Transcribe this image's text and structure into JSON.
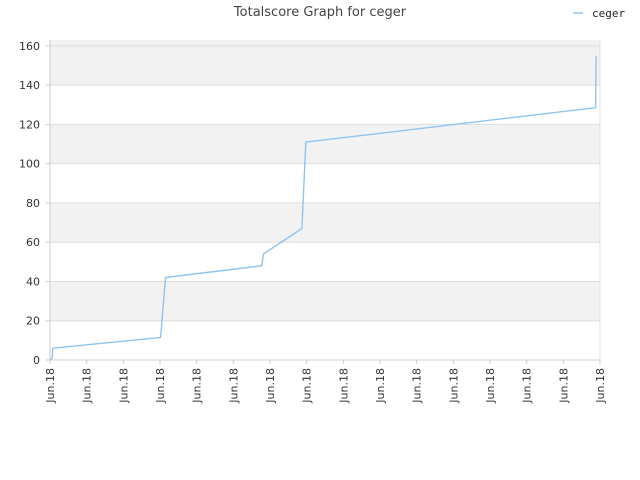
{
  "chart_data": {
    "type": "line",
    "title": "Totalscore Graph for ceger",
    "xlabel": "",
    "ylabel": "",
    "ylim": [
      0,
      163
    ],
    "yticks": [
      0,
      20,
      40,
      60,
      80,
      100,
      120,
      140,
      160
    ],
    "xtick_labels": [
      "Jun.18",
      "Jun.18",
      "Jun.18",
      "Jun.18",
      "Jun.18",
      "Jun.18",
      "Jun.18",
      "Jun.18",
      "Jun.18",
      "Jun.18",
      "Jun.18",
      "Jun.18",
      "Jun.18",
      "Jun.18",
      "Jun.18",
      "Jun.18"
    ],
    "grid": true,
    "legend_position": "top-right",
    "colors": {
      "line": "#90c4ee",
      "band": "#f2f2f2",
      "grid": "#dddddd",
      "axis": "#cccccc"
    },
    "series": [
      {
        "name": "ceger",
        "points": [
          [
            0.0,
            0
          ],
          [
            0.4,
            1
          ],
          [
            0.5,
            6
          ],
          [
            20.1,
            11.5
          ],
          [
            21.0,
            42
          ],
          [
            38.5,
            48
          ],
          [
            38.8,
            54
          ],
          [
            45.8,
            67
          ],
          [
            46.5,
            111
          ],
          [
            99.2,
            128.5
          ],
          [
            99.3,
            155
          ]
        ]
      }
    ]
  }
}
